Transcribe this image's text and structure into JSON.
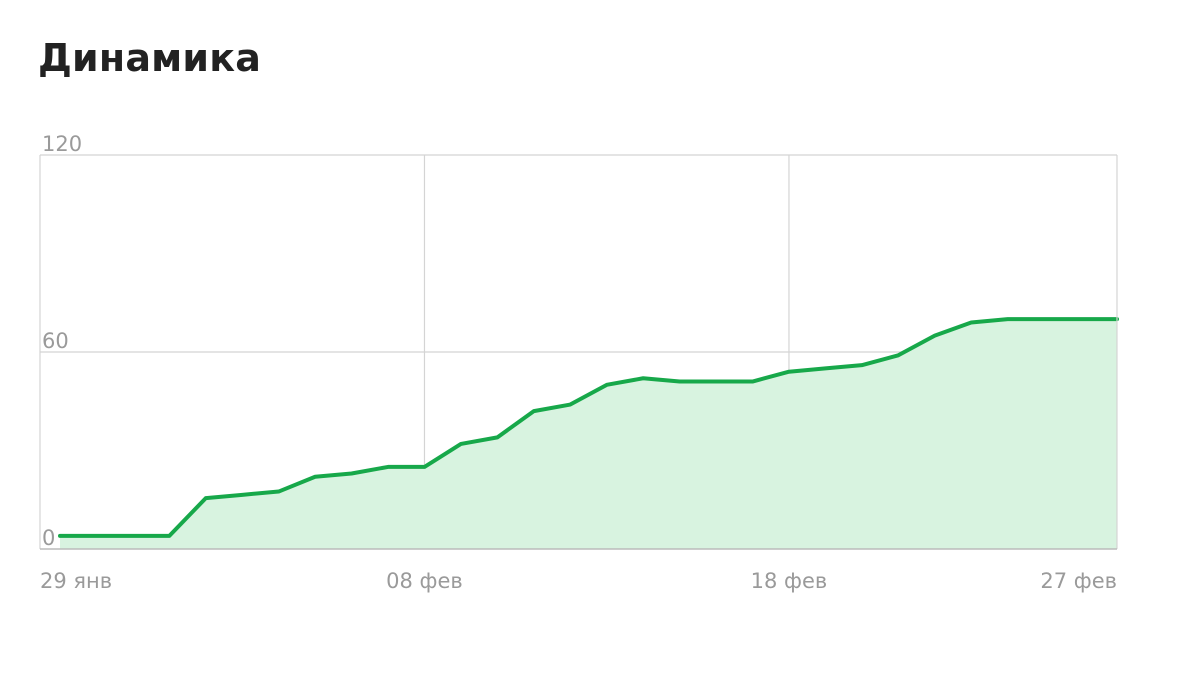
{
  "page": {
    "title": "Динамика"
  },
  "chart_data": {
    "type": "area",
    "title": "Динамика",
    "xlabel": "",
    "ylabel": "",
    "ylim": [
      0,
      120
    ],
    "y_ticks": [
      "0",
      "60",
      "120"
    ],
    "x_ticks": [
      "29 янв",
      "08 фев",
      "18 фев",
      "27 фев"
    ],
    "x_range": [
      "29 янв",
      "27 фев"
    ],
    "grid": true,
    "colors": {
      "line": "#17a84a",
      "fill": "#d8f3e0",
      "grid": "#d4d4d4",
      "axis": "#bbbbbb"
    },
    "series": [
      {
        "x": [
          "29 янв",
          "30 янв",
          "31 янв",
          "01 фев",
          "02 фев",
          "03 фев",
          "04 фев",
          "05 фев",
          "06 фев",
          "07 фев",
          "08 фев",
          "09 фев",
          "10 фев",
          "11 фев",
          "12 фев",
          "13 фев",
          "14 фев",
          "15 фев",
          "16 фев",
          "17 фев",
          "18 фев",
          "19 фев",
          "20 фев",
          "21 фев",
          "22 фев",
          "23 фев",
          "24 фев",
          "25 фев",
          "26 фев",
          "27 фев"
        ],
        "values": [
          4,
          4,
          4,
          4,
          15.5,
          16.5,
          17.5,
          22,
          23,
          25,
          25,
          32,
          34,
          42,
          44,
          50,
          52,
          51,
          51,
          51,
          54,
          55,
          56,
          59,
          65,
          69,
          70,
          70,
          70,
          70
        ]
      }
    ]
  }
}
